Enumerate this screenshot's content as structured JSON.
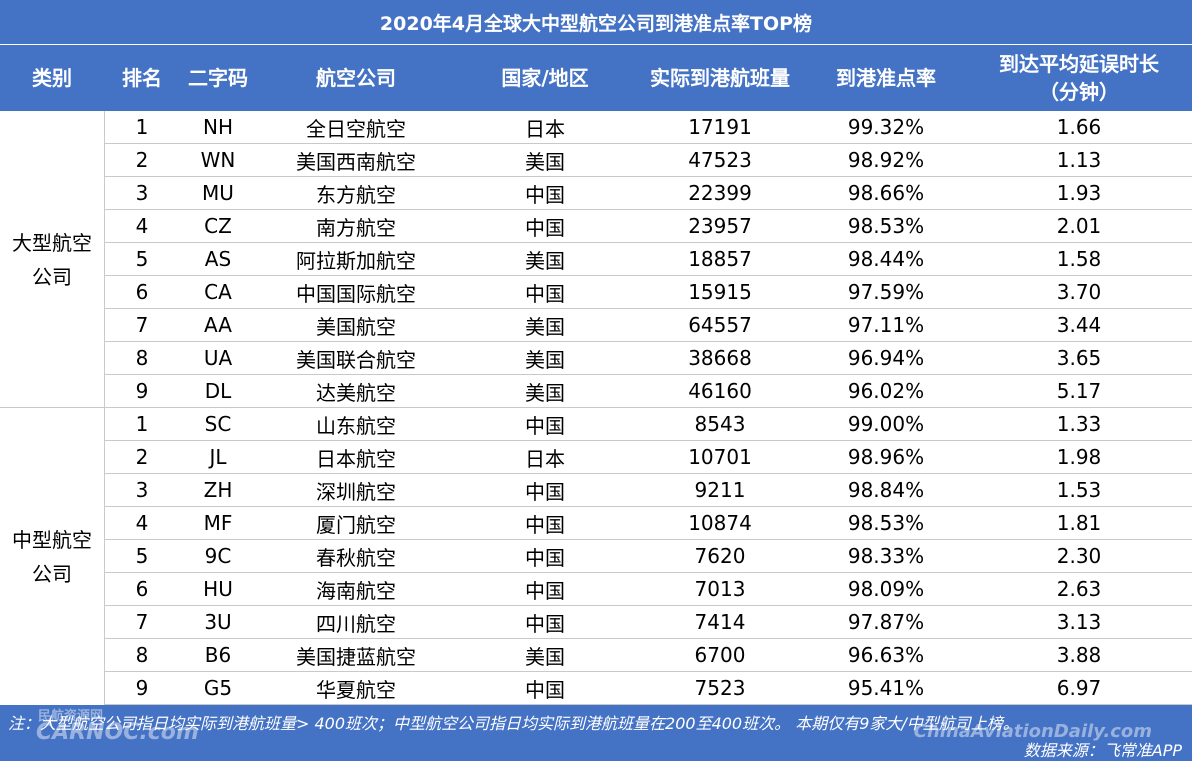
{
  "title": "2020年4月全球大中型航空公司到港准点率TOP榜",
  "headers": {
    "category": "类别",
    "rank": "排名",
    "code": "二字码",
    "airline": "航空公司",
    "country": "国家/地区",
    "flights": "实际到港航班量",
    "otp": "到港准点率",
    "delay_line1": "到达平均延误时长",
    "delay_line2": "（分钟）"
  },
  "groups": [
    {
      "label_line1": "大型航空",
      "label_line2": "公司",
      "rows": [
        {
          "rank": "1",
          "code": "NH",
          "airline": "全日空航空",
          "country": "日本",
          "flights": "17191",
          "otp": "99.32%",
          "delay": "1.66"
        },
        {
          "rank": "2",
          "code": "WN",
          "airline": "美国西南航空",
          "country": "美国",
          "flights": "47523",
          "otp": "98.92%",
          "delay": "1.13"
        },
        {
          "rank": "3",
          "code": "MU",
          "airline": "东方航空",
          "country": "中国",
          "flights": "22399",
          "otp": "98.66%",
          "delay": "1.93"
        },
        {
          "rank": "4",
          "code": "CZ",
          "airline": "南方航空",
          "country": "中国",
          "flights": "23957",
          "otp": "98.53%",
          "delay": "2.01"
        },
        {
          "rank": "5",
          "code": "AS",
          "airline": "阿拉斯加航空",
          "country": "美国",
          "flights": "18857",
          "otp": "98.44%",
          "delay": "1.58"
        },
        {
          "rank": "6",
          "code": "CA",
          "airline": "中国国际航空",
          "country": "中国",
          "flights": "15915",
          "otp": "97.59%",
          "delay": "3.70"
        },
        {
          "rank": "7",
          "code": "AA",
          "airline": "美国航空",
          "country": "美国",
          "flights": "64557",
          "otp": "97.11%",
          "delay": "3.44"
        },
        {
          "rank": "8",
          "code": "UA",
          "airline": "美国联合航空",
          "country": "美国",
          "flights": "38668",
          "otp": "96.94%",
          "delay": "3.65"
        },
        {
          "rank": "9",
          "code": "DL",
          "airline": "达美航空",
          "country": "美国",
          "flights": "46160",
          "otp": "96.02%",
          "delay": "5.17"
        }
      ]
    },
    {
      "label_line1": "中型航空",
      "label_line2": "公司",
      "rows": [
        {
          "rank": "1",
          "code": "SC",
          "airline": "山东航空",
          "country": "中国",
          "flights": "8543",
          "otp": "99.00%",
          "delay": "1.33"
        },
        {
          "rank": "2",
          "code": "JL",
          "airline": "日本航空",
          "country": "日本",
          "flights": "10701",
          "otp": "98.96%",
          "delay": "1.98"
        },
        {
          "rank": "3",
          "code": "ZH",
          "airline": "深圳航空",
          "country": "中国",
          "flights": "9211",
          "otp": "98.84%",
          "delay": "1.53"
        },
        {
          "rank": "4",
          "code": "MF",
          "airline": "厦门航空",
          "country": "中国",
          "flights": "10874",
          "otp": "98.53%",
          "delay": "1.81"
        },
        {
          "rank": "5",
          "code": "9C",
          "airline": "春秋航空",
          "country": "中国",
          "flights": "7620",
          "otp": "98.33%",
          "delay": "2.30"
        },
        {
          "rank": "6",
          "code": "HU",
          "airline": "海南航空",
          "country": "中国",
          "flights": "7013",
          "otp": "98.09%",
          "delay": "2.63"
        },
        {
          "rank": "7",
          "code": "3U",
          "airline": "四川航空",
          "country": "中国",
          "flights": "7414",
          "otp": "97.87%",
          "delay": "3.13"
        },
        {
          "rank": "8",
          "code": "B6",
          "airline": "美国捷蓝航空",
          "country": "美国",
          "flights": "6700",
          "otp": "96.63%",
          "delay": "3.88"
        },
        {
          "rank": "9",
          "code": "G5",
          "airline": "华夏航空",
          "country": "中国",
          "flights": "7523",
          "otp": "95.41%",
          "delay": "6.97"
        }
      ]
    }
  ],
  "footer": {
    "note": "注：大型航空公司指日均实际到港航班量> 400班次；中型航空公司指日均实际到港航班量在200至400班次。 本期仅有9家大/中型航司上榜。",
    "source": "数据来源：飞常准APP"
  },
  "watermarks": {
    "left_top": "民航资源网",
    "left": "CARNOC.com",
    "right": "ChinaAviationDaily.com"
  }
}
